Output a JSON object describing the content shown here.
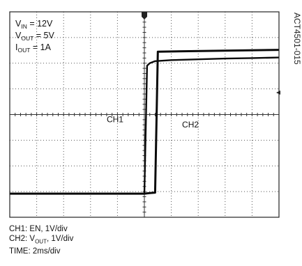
{
  "chart_data": {
    "type": "line",
    "figure_id": "ACT4501-015",
    "settings": [
      {
        "sym": "V",
        "sub": "IN",
        "value": "= 12V"
      },
      {
        "sym": "V",
        "sub": "OUT",
        "value": "= 5V"
      },
      {
        "sym": "I",
        "sub": "OUT",
        "value": "= 1A"
      }
    ],
    "grid": true,
    "divisions_x": 10,
    "divisions_y": 8,
    "x_unit": "div (2ms/div)",
    "y_unit": "div (1V/div)",
    "xlim": [
      0,
      10
    ],
    "ylim": [
      0,
      8
    ],
    "series": [
      {
        "name": "CH1",
        "label": "CH1",
        "x": [
          0,
          5.0,
          5.2,
          5.4,
          5.5,
          10
        ],
        "y": [
          0.92,
          0.92,
          0.94,
          0.96,
          6.45,
          6.52
        ]
      },
      {
        "name": "CH2",
        "label": "CH2",
        "x": [
          0,
          5.0,
          5.1,
          5.2,
          5.4,
          6.0,
          7.0,
          8.0,
          9.0,
          10
        ],
        "y": [
          0.92,
          0.92,
          5.9,
          6.0,
          6.08,
          6.12,
          6.15,
          6.18,
          6.2,
          6.22
        ]
      }
    ]
  },
  "legend_lines": [
    {
      "pre": "CH1: EN, 1V/div",
      "sub": "",
      "post": ""
    },
    {
      "pre": "CH2: V",
      "sub": "OUT",
      "post": ", 1V/div"
    },
    {
      "pre": "TIME: 2ms/div",
      "sub": "",
      "post": ""
    }
  ]
}
